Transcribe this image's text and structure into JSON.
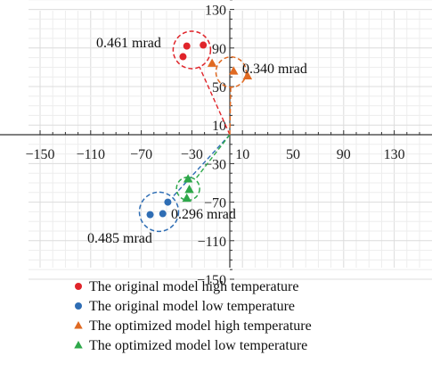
{
  "chart_data": {
    "type": "scatter",
    "title": "",
    "xlabel": "",
    "ylabel": "",
    "xlim": [
      -150,
      150
    ],
    "ylim": [
      -150,
      150
    ],
    "x_ticks": [
      -150,
      -110,
      -70,
      -30,
      10,
      50,
      90,
      130
    ],
    "y_ticks": [
      -150,
      -110,
      -70,
      -30,
      10,
      50,
      90,
      130
    ],
    "grid": true,
    "legend_position": "bottom",
    "series": [
      {
        "name": "The original model high temperature",
        "marker": "circle",
        "color": "#e0242a",
        "points": [
          [
            -34,
            92
          ],
          [
            -37,
            81
          ],
          [
            -21,
            93
          ]
        ],
        "center": [
          -30,
          88
        ],
        "radius_label": "0.461 mrad"
      },
      {
        "name": "The original model low temperature",
        "marker": "circle",
        "color": "#2e6db4",
        "points": [
          [
            -63,
            -83
          ],
          [
            -53,
            -82
          ],
          [
            -49,
            -70
          ]
        ],
        "center": [
          -56,
          -80
        ],
        "radius_label": "0.485 mrad"
      },
      {
        "name": "The optimized model high temperature",
        "marker": "triangle",
        "color": "#e06a22",
        "points": [
          [
            -14,
            74
          ],
          [
            3,
            66
          ],
          [
            14,
            61
          ]
        ],
        "center": [
          1,
          65
        ],
        "radius_label": "0.340 mrad"
      },
      {
        "name": "The optimized model low temperature",
        "marker": "triangle",
        "color": "#2ea84a",
        "points": [
          [
            -33,
            -46
          ],
          [
            -32,
            -57
          ],
          [
            -34,
            -66
          ]
        ],
        "center": [
          -33,
          -56
        ],
        "radius_label": "0.296 mrad"
      }
    ],
    "annotations": [
      "0.461 mrad",
      "0.340 mrad",
      "0.296 mrad",
      "0.485 mrad"
    ]
  }
}
